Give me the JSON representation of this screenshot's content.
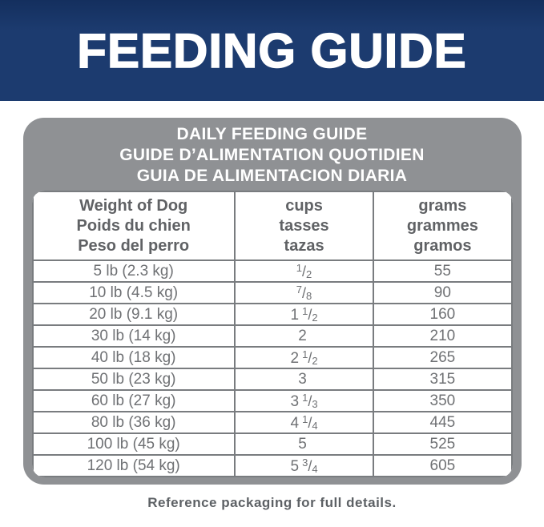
{
  "banner": {
    "title": "FEEDING GUIDE"
  },
  "card": {
    "titles": [
      "DAILY FEEDING GUIDE",
      "GUIDE D’ALIMENTATION QUOTIDIEN",
      "GUIA DE ALIMENTACION DIARIA"
    ]
  },
  "table": {
    "frac_slash": "/",
    "headers": [
      {
        "lines": [
          "Weight of Dog",
          "Poids du chien",
          "Peso del perro"
        ]
      },
      {
        "lines": [
          "cups",
          "tasses",
          "tazas"
        ]
      },
      {
        "lines": [
          "grams",
          "grammes",
          "gramos"
        ]
      }
    ],
    "rows": [
      {
        "weight": "5 lb (2.3 kg)",
        "cups_whole": "",
        "cups_num": "1",
        "cups_den": "2",
        "grams": "55"
      },
      {
        "weight": "10 lb (4.5 kg)",
        "cups_whole": "",
        "cups_num": "7",
        "cups_den": "8",
        "grams": "90"
      },
      {
        "weight": "20 lb (9.1 kg)",
        "cups_whole": "1",
        "cups_num": "1",
        "cups_den": "2",
        "grams": "160"
      },
      {
        "weight": "30 lb (14 kg)",
        "cups_whole": "2",
        "cups_num": "",
        "cups_den": "",
        "grams": "210"
      },
      {
        "weight": "40 lb (18 kg)",
        "cups_whole": "2",
        "cups_num": "1",
        "cups_den": "2",
        "grams": "265"
      },
      {
        "weight": "50 lb (23 kg)",
        "cups_whole": "3",
        "cups_num": "",
        "cups_den": "",
        "grams": "315"
      },
      {
        "weight": "60 lb (27 kg)",
        "cups_whole": "3",
        "cups_num": "1",
        "cups_den": "3",
        "grams": "350"
      },
      {
        "weight": "80 lb (36 kg)",
        "cups_whole": "4",
        "cups_num": "1",
        "cups_den": "4",
        "grams": "445"
      },
      {
        "weight": "100 lb (45 kg)",
        "cups_whole": "5",
        "cups_num": "",
        "cups_den": "",
        "grams": "525"
      },
      {
        "weight": "120 lb (54 kg)",
        "cups_whole": "5",
        "cups_num": "3",
        "cups_den": "4",
        "grams": "605"
      }
    ]
  },
  "footer": {
    "note": "Reference packaging for full details."
  },
  "colors": {
    "banner_navy": "#1c3b6f",
    "card_gray": "#8f9194",
    "grid_line": "#797c7f",
    "title_white": "#ffffff",
    "table_text": "#6f7174",
    "header_text": "#606265",
    "footer_text": "#5d6165"
  },
  "chart_data": {
    "type": "table",
    "title": "DAILY FEEDING GUIDE",
    "columns": [
      "Weight of Dog / Poids du chien / Peso del perro",
      "cups / tasses / tazas",
      "grams / grammes / gramos"
    ],
    "rows": [
      [
        "5 lb (2.3 kg)",
        "1/2",
        "55"
      ],
      [
        "10 lb (4.5 kg)",
        "7/8",
        "90"
      ],
      [
        "20 lb (9.1 kg)",
        "1 1/2",
        "160"
      ],
      [
        "30 lb (14 kg)",
        "2",
        "210"
      ],
      [
        "40 lb (18 kg)",
        "2 1/2",
        "265"
      ],
      [
        "50 lb (23 kg)",
        "3",
        "315"
      ],
      [
        "60 lb (27 kg)",
        "3 1/3",
        "350"
      ],
      [
        "80 lb (36 kg)",
        "4 1/4",
        "445"
      ],
      [
        "100 lb (45 kg)",
        "5",
        "525"
      ],
      [
        "120 lb (54 kg)",
        "5 3/4",
        "605"
      ]
    ]
  }
}
